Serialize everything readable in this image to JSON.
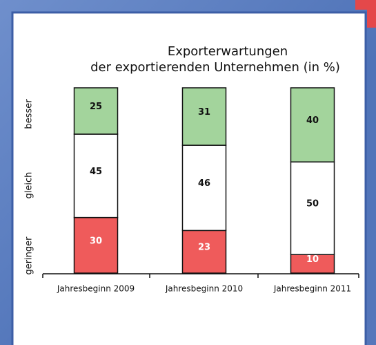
{
  "chart_data": {
    "type": "stacked-bar",
    "title": "Exporterwartungen",
    "subtitle": "der exportierenden Unternehmen (in %)",
    "categories": [
      "Jahresbeginn 2009",
      "Jahresbeginn 2010",
      "Jahresbeginn 2011"
    ],
    "series": [
      {
        "name": "geringer",
        "color": "#ef5b5b",
        "values": [
          30,
          23,
          10
        ]
      },
      {
        "name": "gleich",
        "color": "#ffffff",
        "values": [
          45,
          46,
          50
        ]
      },
      {
        "name": "besser",
        "color": "#a3d49c",
        "values": [
          25,
          31,
          40
        ]
      }
    ],
    "ylim": [
      0,
      100
    ]
  }
}
